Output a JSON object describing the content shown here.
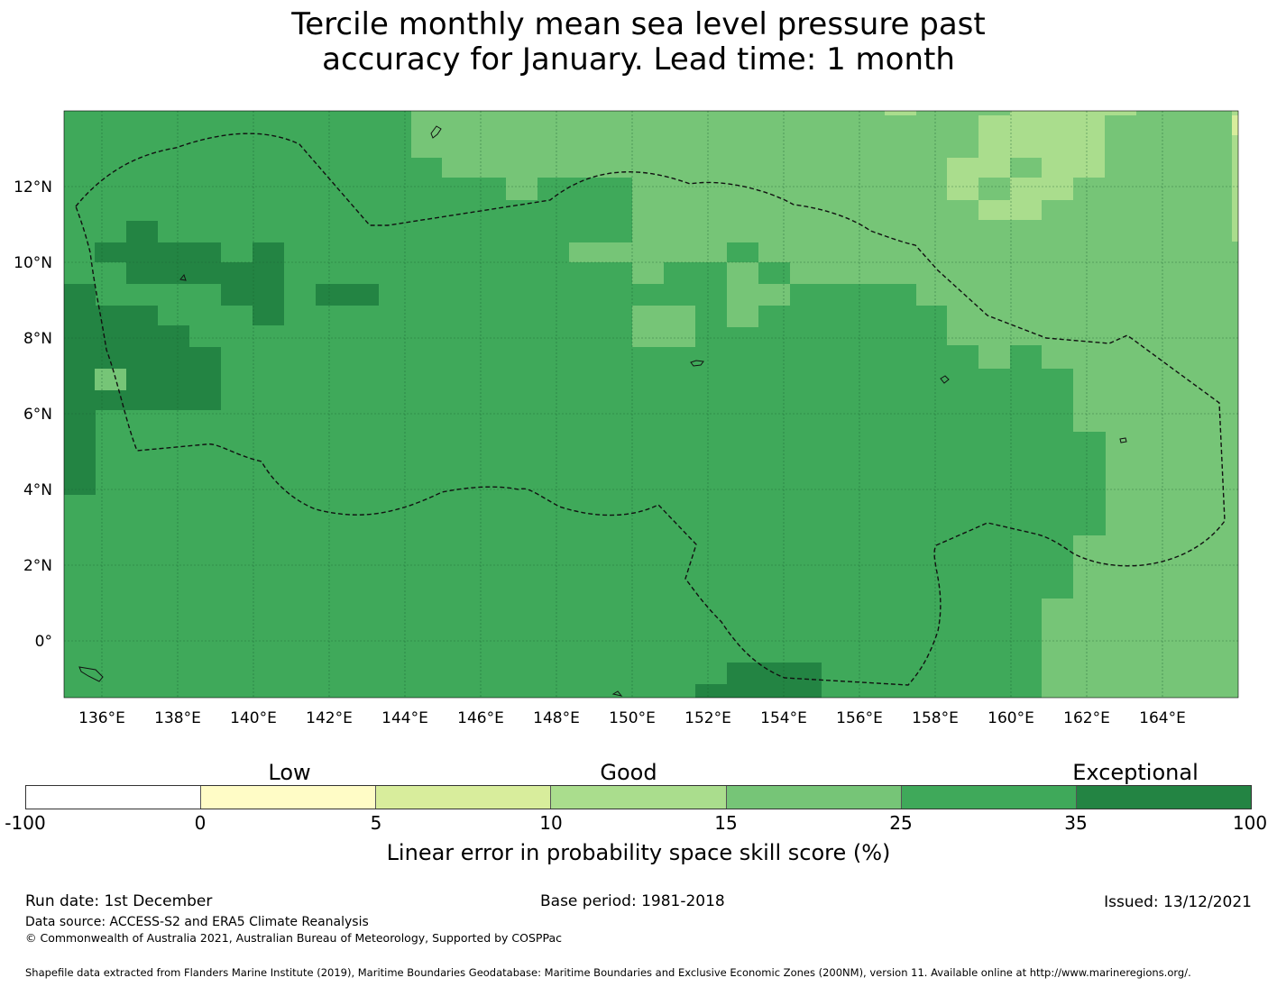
{
  "title": {
    "line1": "Tercile monthly mean sea level pressure past",
    "line2": "accuracy for January. Lead time: 1 month"
  },
  "map": {
    "lon_range_deg": [
      135,
      166
    ],
    "lat_range_deg": [
      -1.5,
      14
    ],
    "lon_ticks": [
      "136°E",
      "138°E",
      "140°E",
      "142°E",
      "144°E",
      "146°E",
      "148°E",
      "150°E",
      "152°E",
      "154°E",
      "156°E",
      "158°E",
      "160°E",
      "162°E",
      "164°E"
    ],
    "lat_ticks": [
      "12°N",
      "10°N",
      "8°N",
      "6°N",
      "4°N",
      "2°N",
      "0°"
    ],
    "colors": {
      "pale_yellow": "#fffcc6",
      "yellow_green": "#d8ed9c",
      "light_green": "#aadd8d",
      "green": "#76c577",
      "mid_green": "#3fa95a",
      "dark_green": "#238443"
    }
  },
  "colorbar": {
    "category_labels": [
      "Low",
      "Good",
      "Exceptional"
    ],
    "tick_labels": [
      "-100",
      "0",
      "5",
      "10",
      "15",
      "25",
      "35",
      "100"
    ],
    "segment_colors": [
      "#ffffff",
      "#fffcc6",
      "#d8ed9c",
      "#aadd8d",
      "#76c577",
      "#3fa95a",
      "#238443"
    ],
    "axis_label": "Linear error in probability space skill score (%)"
  },
  "footer": {
    "run_date": "Run date: 1st December",
    "base_period": "Base period: 1981-2018",
    "issued": "Issued: 13/12/2021",
    "data_source": "Data source: ACCESS-S2 and ERA5 Climate Reanalysis",
    "copyright": "© Commonwealth of Australia 2021, Australian Bureau of Meteorology, Supported by COSPPac",
    "shapefile_note": "Shapefile data extracted from Flanders Marine Institute (2019), Maritime Boundaries Geodatabase: Maritime Boundaries and Exclusive Economic Zones (200NM), version 11. Available online at http://www.marineregions.org/."
  }
}
